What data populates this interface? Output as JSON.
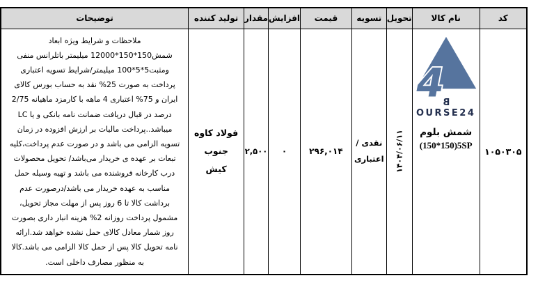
{
  "colors": {
    "header_bg": "#D9D9D9",
    "border": "#000000",
    "logo_triangle": "#56749E",
    "logo_wordmark": "#232F4E"
  },
  "columns": [
    {
      "key": "code",
      "label": "کد"
    },
    {
      "key": "product",
      "label": "نام کالا"
    },
    {
      "key": "delivery",
      "label": "تحویل"
    },
    {
      "key": "settlement",
      "label": "تسویه"
    },
    {
      "key": "price",
      "label": "قیمت"
    },
    {
      "key": "increase",
      "label": "افزایش"
    },
    {
      "key": "quantity",
      "label": "مقدار"
    },
    {
      "key": "producer",
      "label": "تولید کننده"
    },
    {
      "key": "notes",
      "label": "توضیحات"
    }
  ],
  "row": {
    "code": "۱۰۵۰۳۰۵",
    "logo": {
      "digit_2": "2",
      "digit_4": "4",
      "brand": "BOURSE24"
    },
    "product_name": "شمش بلوم",
    "product_spec": "(150*150)5SP",
    "delivery_date": "۱۴۰۴/۰۶/۱۱",
    "settlement": "نقدی / اعتباری",
    "price": "۲۹۶,۰۱۴",
    "increase": "۰",
    "quantity": "۲,۵۰۰",
    "producer": "فولاد کاوه جنوب کیش",
    "notes_lines": [
      "ملاحظات و شرایط ویژه ابعاد",
      "شمش150*150*12000 میلیمتر باتلرانس منفی",
      "ومثبت5*5*100 میلیمتر/شرایط تسویه اعتباری",
      "پرداخت به صورت 25% نقد به حساب بورس کالای",
      "ایران و 75% اعتباری 4 ماهه با کارمزد ماهیانه 2/75",
      "درصد در قبال دریافت ضمانت نامه بانکی و یا LC",
      "میباشد..پرداخت مالیات بر ارزش افزوده در زمان",
      "تسویه الزامی می باشد و در صورت عدم پرداخت،کلیه",
      "تبعات بر عهده ی خریدار می‌باشد/ تحویل محصولات",
      "درب کارخانه فروشنده می باشد و تهیه وسیله حمل",
      "مناسب به عهده خریدار می باشد/درصورت عدم",
      "برداشت کالا تا 6 روز پس از مهلت مجاز تحویل،",
      "مشمول پرداخت روزانه 2% هزینه انبار داری بصورت",
      "روز شمار معادل کالای حمل نشده خواهد شد.ارائه",
      "نامه تحویل کالا پس از حمل کالا الزامی می باشد.کالا",
      "به منظور مصارف داخلی است."
    ]
  }
}
